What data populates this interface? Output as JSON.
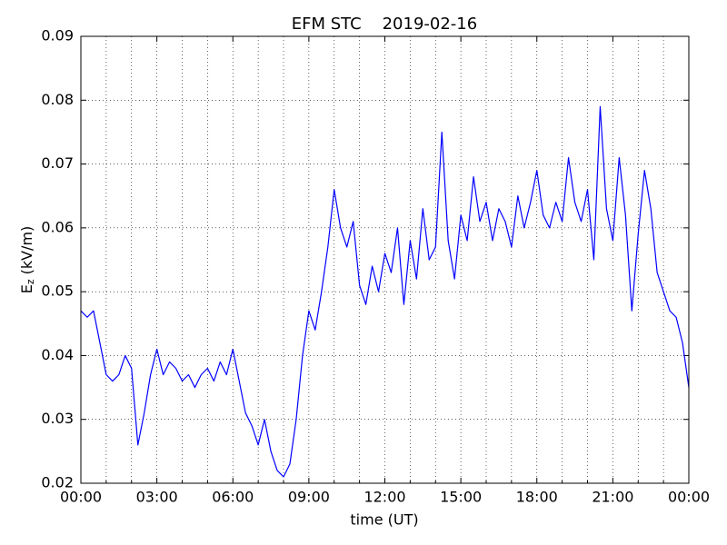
{
  "chart_data": {
    "type": "line",
    "title": "EFM STC    2019-02-16",
    "x_label": "time (UT)",
    "y_label": {
      "main": "E",
      "sub": "z",
      "unit": "(kV/m)"
    },
    "xlim": [
      0,
      24
    ],
    "ylim": [
      0.02,
      0.09
    ],
    "xticks": [
      {
        "value": 0,
        "label": "00:00"
      },
      {
        "value": 3,
        "label": "03:00"
      },
      {
        "value": 6,
        "label": "06:00"
      },
      {
        "value": 9,
        "label": "09:00"
      },
      {
        "value": 12,
        "label": "12:00"
      },
      {
        "value": 15,
        "label": "15:00"
      },
      {
        "value": 18,
        "label": "18:00"
      },
      {
        "value": 21,
        "label": "21:00"
      },
      {
        "value": 24,
        "label": "00:00"
      }
    ],
    "xminor": [
      1,
      2,
      4,
      5,
      7,
      8,
      10,
      11,
      13,
      14,
      16,
      17,
      19,
      20,
      22,
      23
    ],
    "yticks": [
      0.02,
      0.03,
      0.04,
      0.05,
      0.06,
      0.07,
      0.08,
      0.09
    ],
    "grid": true,
    "series": [
      {
        "color": "#0000ff",
        "x": [
          0,
          0.25,
          0.5,
          0.75,
          1,
          1.25,
          1.5,
          1.75,
          2,
          2.25,
          2.5,
          2.75,
          3,
          3.25,
          3.5,
          3.75,
          4,
          4.25,
          4.5,
          4.75,
          5,
          5.25,
          5.5,
          5.75,
          6,
          6.25,
          6.5,
          6.75,
          7,
          7.25,
          7.5,
          7.75,
          8,
          8.25,
          8.5,
          8.75,
          9,
          9.25,
          9.5,
          9.75,
          10,
          10.25,
          10.5,
          10.75,
          11,
          11.25,
          11.5,
          11.75,
          12,
          12.25,
          12.5,
          12.75,
          13,
          13.25,
          13.5,
          13.75,
          14,
          14.25,
          14.5,
          14.75,
          15,
          15.25,
          15.5,
          15.75,
          16,
          16.25,
          16.5,
          16.75,
          17,
          17.25,
          17.5,
          17.75,
          18,
          18.25,
          18.5,
          18.75,
          19,
          19.25,
          19.5,
          19.75,
          20,
          20.25,
          20.5,
          20.75,
          21,
          21.25,
          21.5,
          21.75,
          22,
          22.25,
          22.5,
          22.75,
          23,
          23.25,
          23.5,
          23.75,
          24
        ],
        "values": [
          0.047,
          0.046,
          0.047,
          0.042,
          0.037,
          0.036,
          0.037,
          0.04,
          0.038,
          0.026,
          0.031,
          0.037,
          0.041,
          0.037,
          0.039,
          0.038,
          0.036,
          0.037,
          0.035,
          0.037,
          0.038,
          0.036,
          0.039,
          0.037,
          0.041,
          0.036,
          0.031,
          0.029,
          0.026,
          0.03,
          0.025,
          0.022,
          0.021,
          0.023,
          0.03,
          0.04,
          0.047,
          0.044,
          0.05,
          0.057,
          0.066,
          0.06,
          0.057,
          0.061,
          0.051,
          0.048,
          0.054,
          0.05,
          0.056,
          0.053,
          0.06,
          0.048,
          0.058,
          0.052,
          0.063,
          0.055,
          0.057,
          0.075,
          0.058,
          0.052,
          0.062,
          0.058,
          0.068,
          0.061,
          0.064,
          0.058,
          0.063,
          0.061,
          0.057,
          0.065,
          0.06,
          0.064,
          0.069,
          0.062,
          0.06,
          0.064,
          0.061,
          0.071,
          0.064,
          0.061,
          0.066,
          0.055,
          0.079,
          0.063,
          0.058,
          0.071,
          0.062,
          0.047,
          0.059,
          0.069,
          0.063,
          0.053,
          0.05,
          0.047,
          0.046,
          0.042,
          0.035
        ]
      }
    ]
  }
}
